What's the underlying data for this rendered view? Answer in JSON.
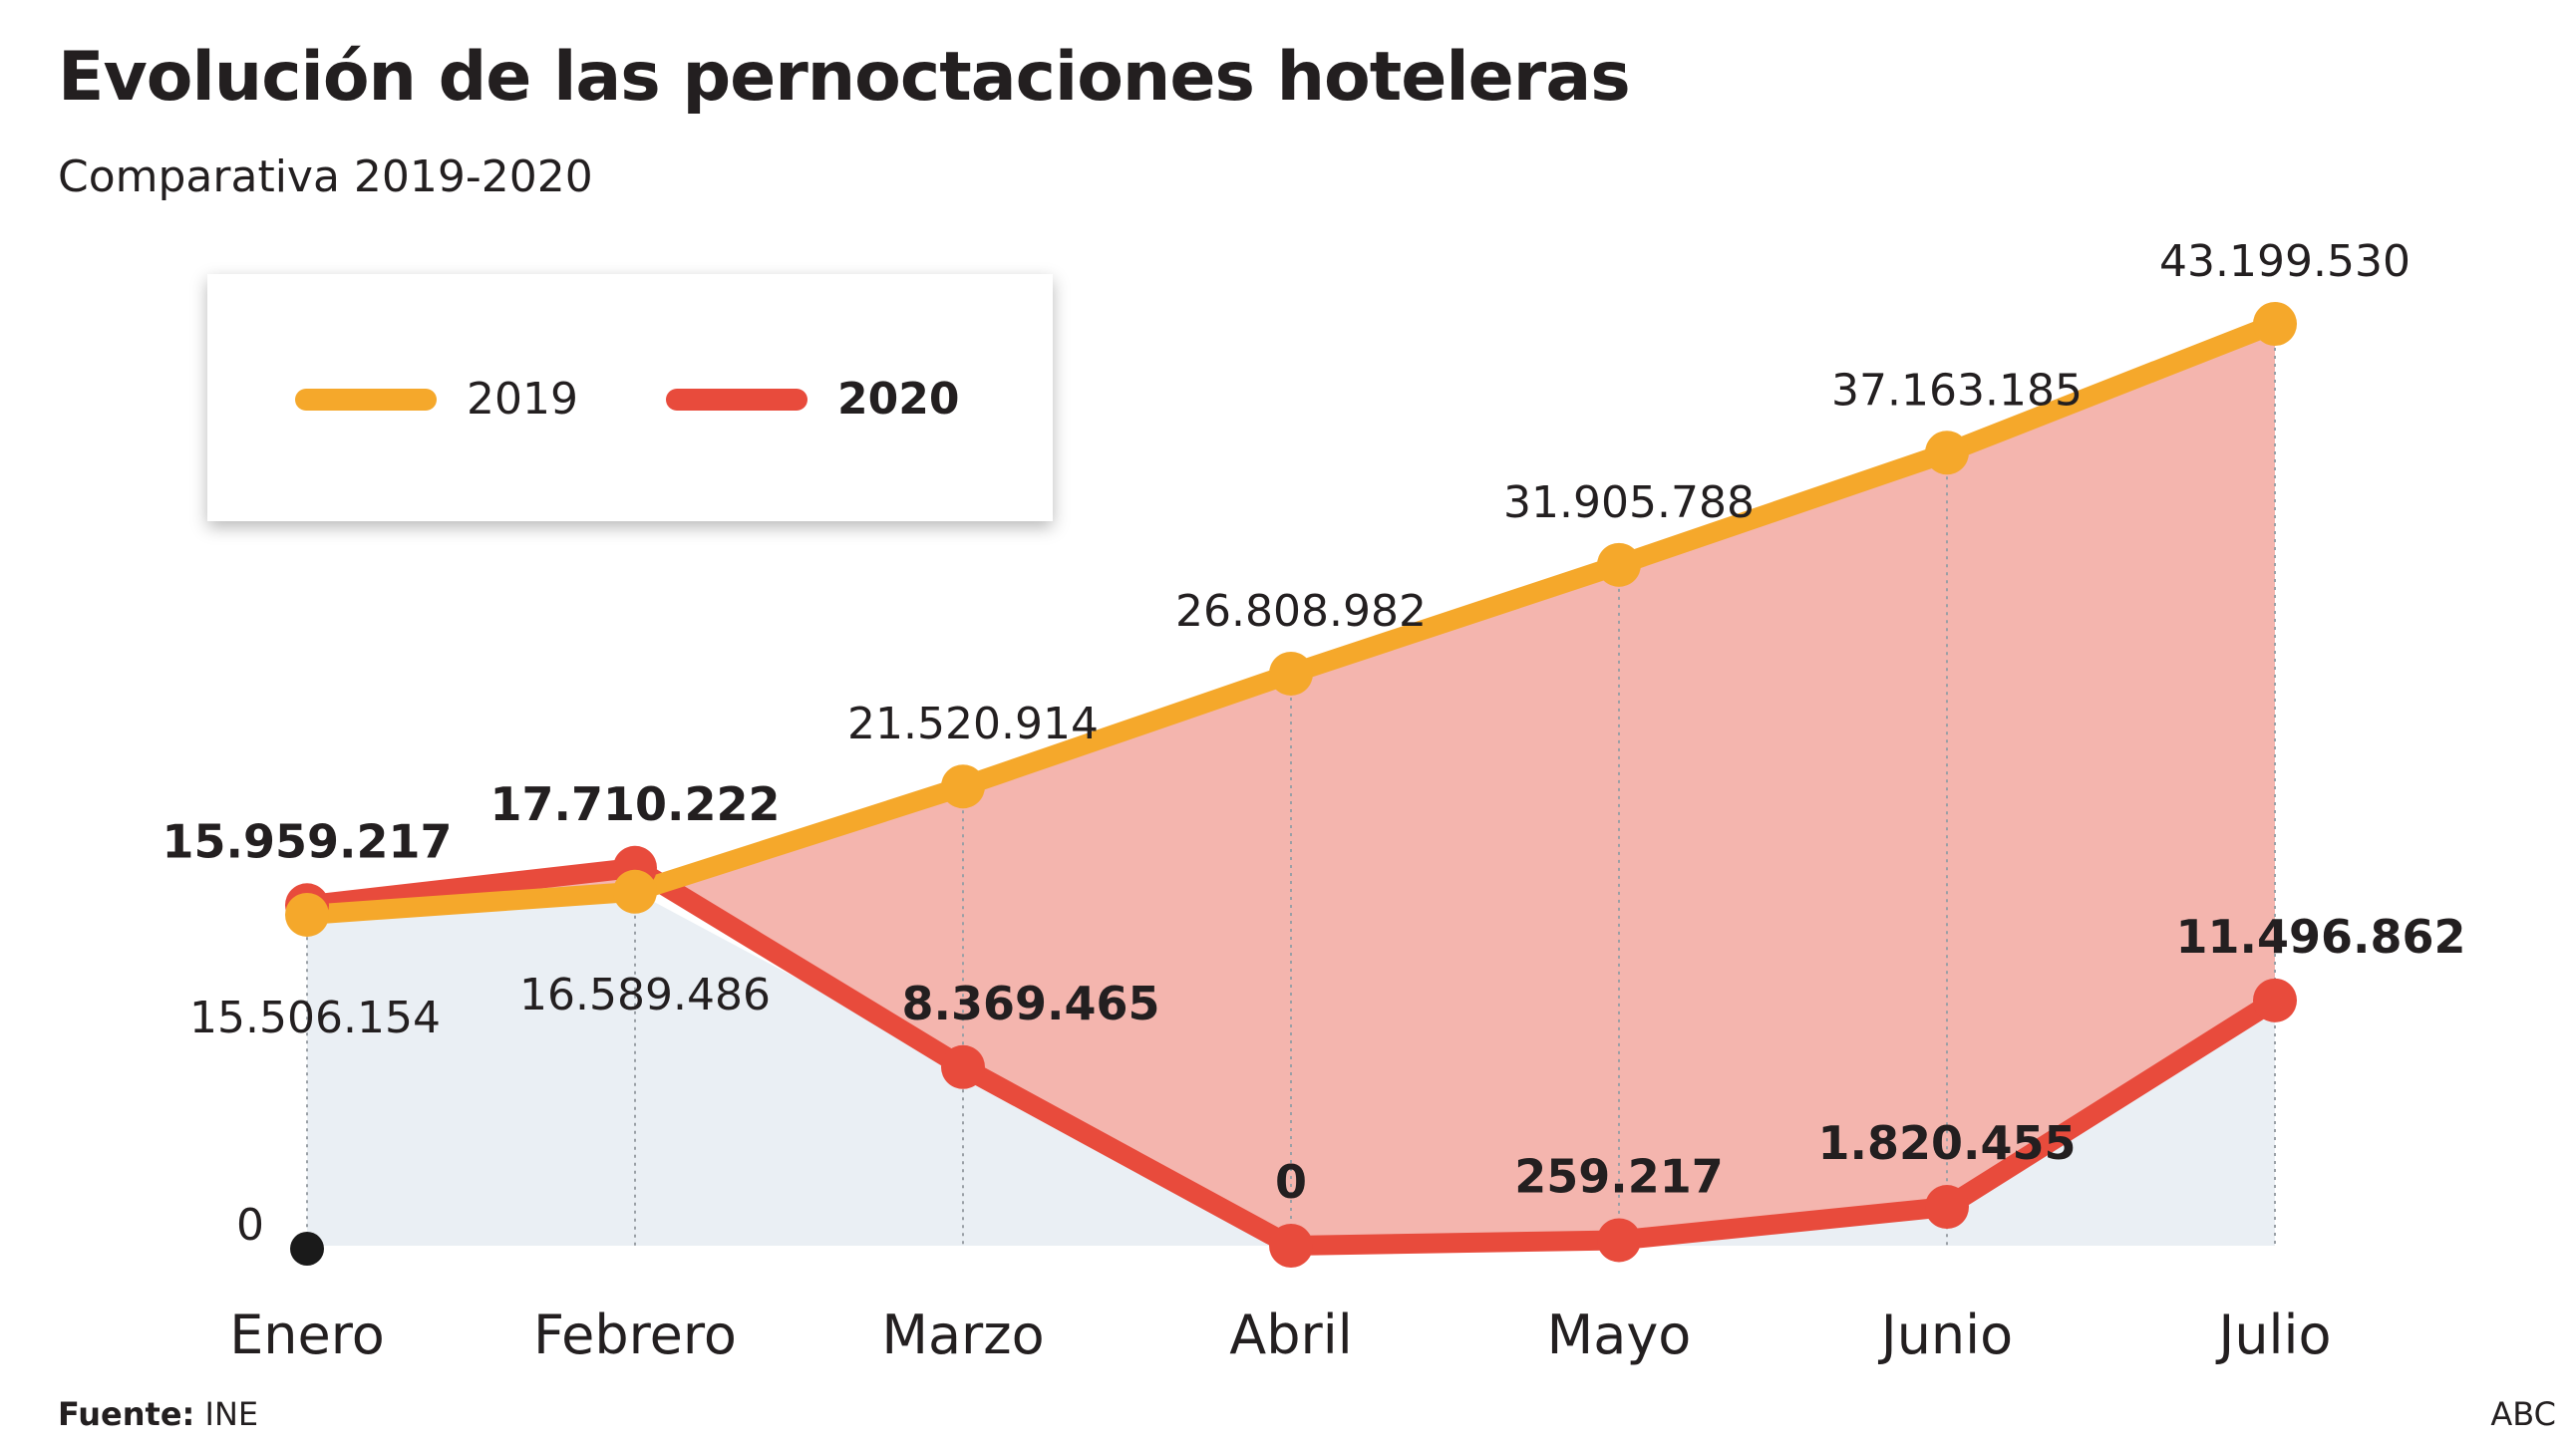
{
  "title": "Evolución de las pernoctaciones hoteleras",
  "subtitle": "Comparativa 2019-2020",
  "footer": {
    "source_label": "Fuente:",
    "source_value": "INE",
    "credit": "ABC"
  },
  "chart_data": {
    "type": "line",
    "categories": [
      "Enero",
      "Febrero",
      "Marzo",
      "Abril",
      "Mayo",
      "Junio",
      "Julio"
    ],
    "series": [
      {
        "name": "2019",
        "color": "#f5a82b",
        "values": [
          15506154,
          16589486,
          21520914,
          26808982,
          31905788,
          37163185,
          43199530
        ],
        "labels": [
          "15.506.154",
          "16.589.486",
          "21.520.914",
          "26.808.982",
          "31.905.788",
          "37.163.185",
          "43.199.530"
        ]
      },
      {
        "name": "2020",
        "color": "#e84b3c",
        "values": [
          15959217,
          17710222,
          8369465,
          0,
          259217,
          1820455,
          11496862
        ],
        "labels": [
          "15.959.217",
          "17.710.222",
          "8.369.465",
          "0",
          "259.217",
          "1.820.455",
          "11.496.862"
        ]
      }
    ],
    "y_zero_label": "0",
    "ylim": [
      0,
      43199530
    ],
    "legend": "top-left",
    "grid": false,
    "fill_between_color": "#f4b5ae",
    "fill_under_color": "#eaeff4"
  }
}
